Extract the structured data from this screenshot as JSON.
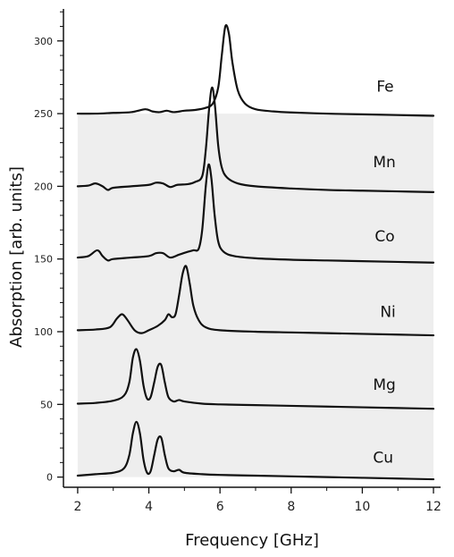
{
  "chart_data": {
    "type": "line",
    "title": "",
    "xlabel": "Frequency [GHz]",
    "ylabel": "Absorption [arb. units]",
    "xlim": [
      1.6,
      12.2
    ],
    "ylim": [
      -7,
      322
    ],
    "x_ticks": [
      2,
      4,
      6,
      8,
      10,
      12
    ],
    "y_ticks": [
      0,
      50,
      100,
      150,
      200,
      250,
      300
    ],
    "grid": false,
    "legend": "labels right of each curve",
    "shaded_region": {
      "x_from": 2,
      "x_to": 12,
      "y_from": 0,
      "y_to": 250,
      "color": "#eeeeee"
    },
    "x_tick_labels": [
      "2",
      "4",
      "6",
      "8",
      "10",
      "12"
    ],
    "y_tick_labels": [
      "0",
      "50",
      "100",
      "150",
      "200",
      "250",
      "300"
    ],
    "series": [
      {
        "name": "Fe",
        "points": [
          [
            2.0,
            250
          ],
          [
            2.5,
            250
          ],
          [
            3.0,
            250.5
          ],
          [
            3.5,
            251
          ],
          [
            3.9,
            253
          ],
          [
            4.1,
            251.5
          ],
          [
            4.3,
            251
          ],
          [
            4.5,
            252
          ],
          [
            4.7,
            251
          ],
          [
            5.0,
            252
          ],
          [
            5.3,
            252.5
          ],
          [
            5.6,
            254
          ],
          [
            5.8,
            257
          ],
          [
            5.95,
            268
          ],
          [
            6.05,
            290
          ],
          [
            6.15,
            310
          ],
          [
            6.25,
            305
          ],
          [
            6.35,
            285
          ],
          [
            6.5,
            266
          ],
          [
            6.7,
            257
          ],
          [
            7.0,
            253
          ],
          [
            7.5,
            251.5
          ],
          [
            8.0,
            250.8
          ],
          [
            9.0,
            250
          ],
          [
            10.0,
            249.5
          ],
          [
            11.0,
            249
          ],
          [
            12.0,
            248.5
          ]
        ]
      },
      {
        "name": "Mn",
        "points": [
          [
            2.0,
            200
          ],
          [
            2.3,
            200.5
          ],
          [
            2.5,
            202
          ],
          [
            2.7,
            200
          ],
          [
            2.85,
            197.5
          ],
          [
            3.0,
            199
          ],
          [
            3.5,
            200
          ],
          [
            4.0,
            201
          ],
          [
            4.2,
            202.5
          ],
          [
            4.4,
            202
          ],
          [
            4.6,
            199.5
          ],
          [
            4.8,
            201
          ],
          [
            5.1,
            201.5
          ],
          [
            5.3,
            203
          ],
          [
            5.5,
            207
          ],
          [
            5.6,
            225
          ],
          [
            5.7,
            255
          ],
          [
            5.78,
            268
          ],
          [
            5.86,
            255
          ],
          [
            5.95,
            228
          ],
          [
            6.05,
            213
          ],
          [
            6.2,
            206
          ],
          [
            6.5,
            202
          ],
          [
            7.0,
            200
          ],
          [
            8.0,
            198.5
          ],
          [
            9.0,
            197.5
          ],
          [
            10.0,
            197
          ],
          [
            11.0,
            196.5
          ],
          [
            12.0,
            196
          ]
        ]
      },
      {
        "name": "Co",
        "points": [
          [
            2.0,
            151
          ],
          [
            2.3,
            152
          ],
          [
            2.55,
            156
          ],
          [
            2.7,
            152
          ],
          [
            2.85,
            149
          ],
          [
            3.0,
            150
          ],
          [
            3.5,
            151
          ],
          [
            4.0,
            152
          ],
          [
            4.2,
            154
          ],
          [
            4.4,
            154
          ],
          [
            4.6,
            151
          ],
          [
            4.85,
            153
          ],
          [
            5.1,
            155
          ],
          [
            5.25,
            156
          ],
          [
            5.4,
            157
          ],
          [
            5.5,
            170
          ],
          [
            5.6,
            200
          ],
          [
            5.68,
            215
          ],
          [
            5.76,
            205
          ],
          [
            5.85,
            180
          ],
          [
            5.95,
            162
          ],
          [
            6.1,
            155
          ],
          [
            6.4,
            152
          ],
          [
            7.0,
            150.5
          ],
          [
            8.0,
            149.5
          ],
          [
            9.0,
            149
          ],
          [
            10.0,
            148.5
          ],
          [
            11.0,
            148
          ],
          [
            12.0,
            147.5
          ]
        ]
      },
      {
        "name": "Ni",
        "points": [
          [
            2.0,
            101
          ],
          [
            2.5,
            101.5
          ],
          [
            2.9,
            103
          ],
          [
            3.1,
            109
          ],
          [
            3.25,
            112
          ],
          [
            3.4,
            108
          ],
          [
            3.6,
            101
          ],
          [
            3.8,
            99
          ],
          [
            4.0,
            101
          ],
          [
            4.25,
            104
          ],
          [
            4.45,
            108
          ],
          [
            4.55,
            112
          ],
          [
            4.65,
            110
          ],
          [
            4.75,
            112
          ],
          [
            4.85,
            125
          ],
          [
            4.95,
            140
          ],
          [
            5.05,
            145
          ],
          [
            5.15,
            133
          ],
          [
            5.25,
            118
          ],
          [
            5.4,
            108
          ],
          [
            5.6,
            103
          ],
          [
            6.0,
            101
          ],
          [
            7.0,
            100
          ],
          [
            8.0,
            99.5
          ],
          [
            9.0,
            99
          ],
          [
            10.0,
            98.5
          ],
          [
            11.0,
            98
          ],
          [
            12.0,
            97.5
          ]
        ]
      },
      {
        "name": "Mg",
        "points": [
          [
            2.0,
            50.5
          ],
          [
            2.5,
            51
          ],
          [
            3.0,
            52.5
          ],
          [
            3.3,
            56
          ],
          [
            3.45,
            65
          ],
          [
            3.55,
            82
          ],
          [
            3.65,
            88
          ],
          [
            3.75,
            80
          ],
          [
            3.85,
            63
          ],
          [
            3.95,
            54
          ],
          [
            4.05,
            55
          ],
          [
            4.15,
            65
          ],
          [
            4.25,
            76
          ],
          [
            4.35,
            77
          ],
          [
            4.45,
            65
          ],
          [
            4.55,
            55
          ],
          [
            4.7,
            52
          ],
          [
            4.85,
            53
          ],
          [
            5.0,
            52
          ],
          [
            5.5,
            50.5
          ],
          [
            6.0,
            50
          ],
          [
            7.0,
            49.5
          ],
          [
            8.0,
            49
          ],
          [
            9.0,
            48.5
          ],
          [
            10.0,
            48
          ],
          [
            11.0,
            47.5
          ],
          [
            12.0,
            47
          ]
        ]
      },
      {
        "name": "Cu",
        "points": [
          [
            2.0,
            1
          ],
          [
            2.5,
            2
          ],
          [
            3.0,
            3
          ],
          [
            3.3,
            6
          ],
          [
            3.45,
            15
          ],
          [
            3.55,
            30
          ],
          [
            3.65,
            38
          ],
          [
            3.75,
            30
          ],
          [
            3.85,
            12
          ],
          [
            3.95,
            3
          ],
          [
            4.05,
            4
          ],
          [
            4.15,
            15
          ],
          [
            4.25,
            26
          ],
          [
            4.35,
            27
          ],
          [
            4.45,
            15
          ],
          [
            4.55,
            6
          ],
          [
            4.7,
            4
          ],
          [
            4.85,
            5
          ],
          [
            5.0,
            3
          ],
          [
            5.5,
            2
          ],
          [
            6.0,
            1.5
          ],
          [
            7.0,
            1
          ],
          [
            8.0,
            0.5
          ],
          [
            9.0,
            0
          ],
          [
            10.0,
            -0.5
          ],
          [
            11.0,
            -1
          ],
          [
            12.0,
            -1.5
          ]
        ]
      }
    ],
    "labels": [
      {
        "text": "Fe",
        "x": 10.4,
        "y": 265
      },
      {
        "text": "Mn",
        "x": 10.3,
        "y": 213
      },
      {
        "text": "Co",
        "x": 10.35,
        "y": 162
      },
      {
        "text": "Ni",
        "x": 10.5,
        "y": 110
      },
      {
        "text": "Mg",
        "x": 10.3,
        "y": 60
      },
      {
        "text": "Cu",
        "x": 10.3,
        "y": 10
      }
    ]
  }
}
